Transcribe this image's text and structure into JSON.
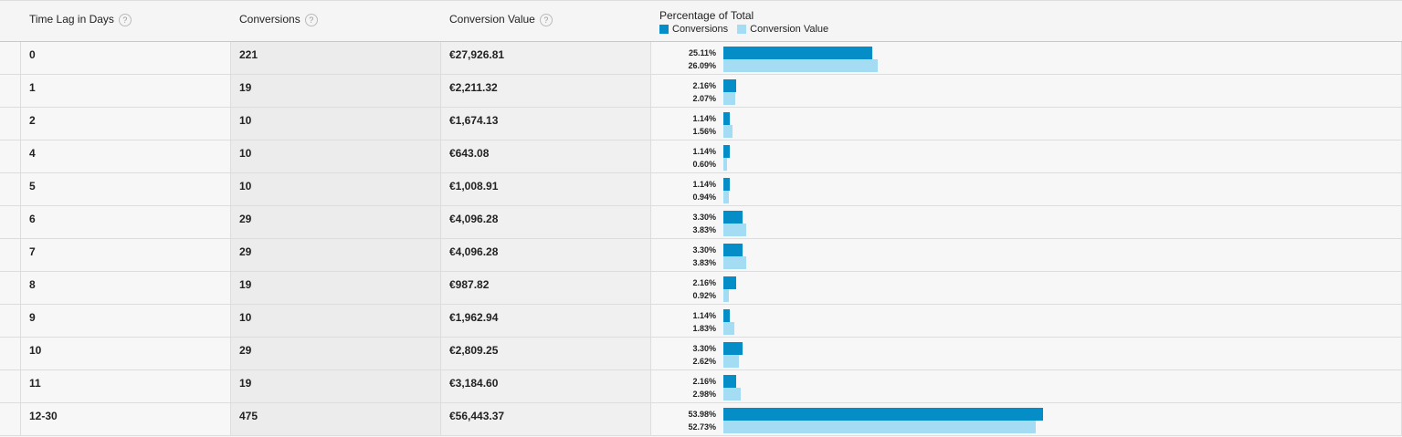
{
  "header": {
    "columns": [
      "Time Lag in Days",
      "Conversions",
      "Conversion Value",
      "Percentage of Total"
    ],
    "help_icon": "?",
    "legend": [
      {
        "name": "Conversions",
        "color": "#058dc7"
      },
      {
        "name": "Conversion Value",
        "color": "#a3dcf3"
      }
    ]
  },
  "table": {
    "rows": [
      {
        "lag": "0",
        "conversions": "221",
        "value": "€27,926.81",
        "pct": [
          {
            "value": 25.11,
            "label": "25.11%"
          },
          {
            "value": 26.09,
            "label": "26.09%"
          }
        ]
      },
      {
        "lag": "1",
        "conversions": "19",
        "value": "€2,211.32",
        "pct": [
          {
            "value": 2.16,
            "label": "2.16%"
          },
          {
            "value": 2.07,
            "label": "2.07%"
          }
        ]
      },
      {
        "lag": "2",
        "conversions": "10",
        "value": "€1,674.13",
        "pct": [
          {
            "value": 1.14,
            "label": "1.14%"
          },
          {
            "value": 1.56,
            "label": "1.56%"
          }
        ]
      },
      {
        "lag": "4",
        "conversions": "10",
        "value": "€643.08",
        "pct": [
          {
            "value": 1.14,
            "label": "1.14%"
          },
          {
            "value": 0.6,
            "label": "0.60%"
          }
        ]
      },
      {
        "lag": "5",
        "conversions": "10",
        "value": "€1,008.91",
        "pct": [
          {
            "value": 1.14,
            "label": "1.14%"
          },
          {
            "value": 0.94,
            "label": "0.94%"
          }
        ]
      },
      {
        "lag": "6",
        "conversions": "29",
        "value": "€4,096.28",
        "pct": [
          {
            "value": 3.3,
            "label": "3.30%"
          },
          {
            "value": 3.83,
            "label": "3.83%"
          }
        ]
      },
      {
        "lag": "7",
        "conversions": "29",
        "value": "€4,096.28",
        "pct": [
          {
            "value": 3.3,
            "label": "3.30%"
          },
          {
            "value": 3.83,
            "label": "3.83%"
          }
        ]
      },
      {
        "lag": "8",
        "conversions": "19",
        "value": "€987.82",
        "pct": [
          {
            "value": 2.16,
            "label": "2.16%"
          },
          {
            "value": 0.92,
            "label": "0.92%"
          }
        ]
      },
      {
        "lag": "9",
        "conversions": "10",
        "value": "€1,962.94",
        "pct": [
          {
            "value": 1.14,
            "label": "1.14%"
          },
          {
            "value": 1.83,
            "label": "1.83%"
          }
        ]
      },
      {
        "lag": "10",
        "conversions": "29",
        "value": "€2,809.25",
        "pct": [
          {
            "value": 3.3,
            "label": "3.30%"
          },
          {
            "value": 2.62,
            "label": "2.62%"
          }
        ]
      },
      {
        "lag": "11",
        "conversions": "19",
        "value": "€3,184.60",
        "pct": [
          {
            "value": 2.16,
            "label": "2.16%"
          },
          {
            "value": 2.98,
            "label": "2.98%"
          }
        ]
      },
      {
        "lag": "12-30",
        "conversions": "475",
        "value": "€56,443.37",
        "pct": [
          {
            "value": 53.98,
            "label": "53.98%"
          },
          {
            "value": 52.73,
            "label": "52.73%"
          }
        ]
      }
    ]
  }
}
